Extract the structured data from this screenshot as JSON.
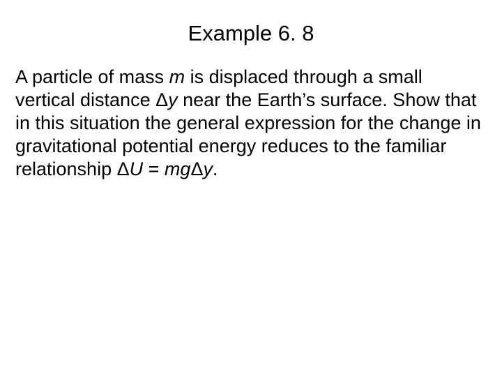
{
  "colors": {
    "background": "#ffffff",
    "text": "#000000"
  },
  "typography": {
    "family": "Arial, Helvetica, sans-serif",
    "title_fontsize": 31,
    "body_fontsize": 27,
    "body_lineheight": 1.22
  },
  "title": "Example 6. 8",
  "body": {
    "s1a": "A particle of mass ",
    "s1_m": "m",
    "s1b": " is displaced through a small vertical distance ",
    "s1_D1": "Δ",
    "s1_y": "y",
    "s1c": " near the Earth’s surface. Show that in this situation the general expression for the change in gravitational potential energy reduces to the familiar relationship ",
    "s1_D2": "Δ",
    "s1_U": "U",
    "s1_eq": " = ",
    "s1_mg": "mg",
    "s1_D3": "Δ",
    "s1_y2": "y",
    "s1_end": "."
  }
}
